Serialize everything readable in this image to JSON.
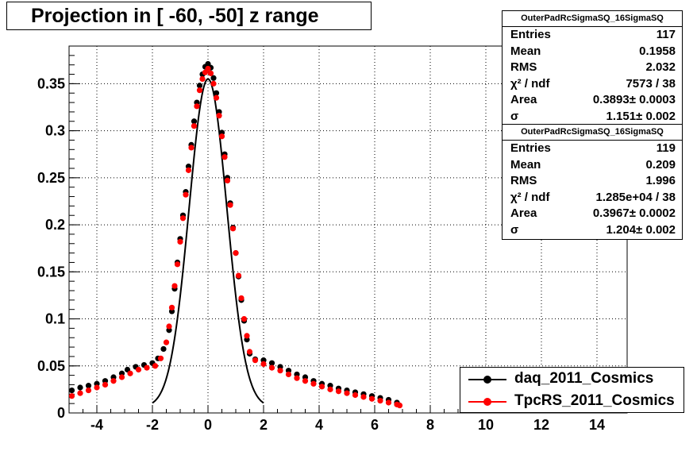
{
  "chart_data": {
    "type": "scatter",
    "title": "Projection in [ -60, -50] z range",
    "xlim": [
      -5,
      17
    ],
    "ylim": [
      0,
      0.39
    ],
    "x_ticks": [
      "-4",
      "-2",
      "0",
      "2",
      "4",
      "6",
      "8",
      "10",
      "12",
      "14"
    ],
    "y_ticks": [
      "0",
      "0.05",
      "0.1",
      "0.15",
      "0.2",
      "0.25",
      "0.3",
      "0.35"
    ],
    "grid": true,
    "legend_position": "bottom-right",
    "series": [
      {
        "name": "daq_2011_Cosmics",
        "color": "#000000",
        "points": [
          [
            -4.9,
            0.024
          ],
          [
            -4.6,
            0.027
          ],
          [
            -4.3,
            0.029
          ],
          [
            -4.0,
            0.031
          ],
          [
            -3.7,
            0.034
          ],
          [
            -3.4,
            0.038
          ],
          [
            -3.1,
            0.042
          ],
          [
            -2.9,
            0.046
          ],
          [
            -2.6,
            0.049
          ],
          [
            -2.3,
            0.051
          ],
          [
            -2.0,
            0.053
          ],
          [
            -1.8,
            0.058
          ],
          [
            -1.6,
            0.068
          ],
          [
            -1.4,
            0.088
          ],
          [
            -1.3,
            0.108
          ],
          [
            -1.2,
            0.132
          ],
          [
            -1.1,
            0.16
          ],
          [
            -1.0,
            0.185
          ],
          [
            -0.9,
            0.21
          ],
          [
            -0.8,
            0.235
          ],
          [
            -0.7,
            0.262
          ],
          [
            -0.6,
            0.285
          ],
          [
            -0.5,
            0.31
          ],
          [
            -0.4,
            0.33
          ],
          [
            -0.3,
            0.348
          ],
          [
            -0.2,
            0.36
          ],
          [
            -0.1,
            0.368
          ],
          [
            0.0,
            0.371
          ],
          [
            0.1,
            0.367
          ],
          [
            0.2,
            0.356
          ],
          [
            0.3,
            0.34
          ],
          [
            0.4,
            0.32
          ],
          [
            0.5,
            0.298
          ],
          [
            0.6,
            0.275
          ],
          [
            0.7,
            0.25
          ],
          [
            0.8,
            0.223
          ],
          [
            0.9,
            0.197
          ],
          [
            1.0,
            0.17
          ],
          [
            1.1,
            0.145
          ],
          [
            1.2,
            0.12
          ],
          [
            1.3,
            0.098
          ],
          [
            1.4,
            0.078
          ],
          [
            1.5,
            0.063
          ],
          [
            1.7,
            0.057
          ],
          [
            2.0,
            0.056
          ],
          [
            2.3,
            0.053
          ],
          [
            2.6,
            0.049
          ],
          [
            2.9,
            0.045
          ],
          [
            3.2,
            0.041
          ],
          [
            3.5,
            0.038
          ],
          [
            3.8,
            0.034
          ],
          [
            4.1,
            0.031
          ],
          [
            4.4,
            0.029
          ],
          [
            4.7,
            0.026
          ],
          [
            5.0,
            0.024
          ],
          [
            5.3,
            0.022
          ],
          [
            5.6,
            0.02
          ],
          [
            5.9,
            0.018
          ],
          [
            6.2,
            0.016
          ],
          [
            6.5,
            0.014
          ],
          [
            6.8,
            0.011
          ]
        ]
      },
      {
        "name": "TpcRS_2011_Cosmics",
        "color": "#ff0000",
        "points": [
          [
            -4.9,
            0.018
          ],
          [
            -4.6,
            0.021
          ],
          [
            -4.3,
            0.024
          ],
          [
            -4.0,
            0.027
          ],
          [
            -3.7,
            0.03
          ],
          [
            -3.4,
            0.034
          ],
          [
            -3.1,
            0.038
          ],
          [
            -2.8,
            0.042
          ],
          [
            -2.5,
            0.046
          ],
          [
            -2.2,
            0.048
          ],
          [
            -1.9,
            0.05
          ],
          [
            -1.7,
            0.058
          ],
          [
            -1.5,
            0.075
          ],
          [
            -1.4,
            0.092
          ],
          [
            -1.3,
            0.112
          ],
          [
            -1.2,
            0.135
          ],
          [
            -1.1,
            0.158
          ],
          [
            -1.0,
            0.182
          ],
          [
            -0.9,
            0.207
          ],
          [
            -0.8,
            0.232
          ],
          [
            -0.7,
            0.258
          ],
          [
            -0.6,
            0.282
          ],
          [
            -0.5,
            0.305
          ],
          [
            -0.4,
            0.326
          ],
          [
            -0.3,
            0.343
          ],
          [
            -0.2,
            0.355
          ],
          [
            -0.1,
            0.362
          ],
          [
            0.0,
            0.366
          ],
          [
            0.1,
            0.361
          ],
          [
            0.2,
            0.35
          ],
          [
            0.3,
            0.335
          ],
          [
            0.4,
            0.316
          ],
          [
            0.5,
            0.294
          ],
          [
            0.6,
            0.272
          ],
          [
            0.7,
            0.247
          ],
          [
            0.8,
            0.221
          ],
          [
            0.9,
            0.196
          ],
          [
            1.0,
            0.17
          ],
          [
            1.1,
            0.146
          ],
          [
            1.2,
            0.122
          ],
          [
            1.3,
            0.1
          ],
          [
            1.4,
            0.082
          ],
          [
            1.5,
            0.065
          ],
          [
            1.7,
            0.056
          ],
          [
            2.0,
            0.052
          ],
          [
            2.3,
            0.048
          ],
          [
            2.6,
            0.045
          ],
          [
            2.9,
            0.041
          ],
          [
            3.2,
            0.037
          ],
          [
            3.5,
            0.034
          ],
          [
            3.8,
            0.031
          ],
          [
            4.1,
            0.028
          ],
          [
            4.4,
            0.025
          ],
          [
            4.7,
            0.023
          ],
          [
            5.0,
            0.021
          ],
          [
            5.3,
            0.019
          ],
          [
            5.6,
            0.017
          ],
          [
            5.9,
            0.015
          ],
          [
            6.2,
            0.013
          ],
          [
            6.5,
            0.011
          ],
          [
            6.8,
            0.009
          ],
          [
            6.9,
            0.008
          ]
        ]
      }
    ],
    "fit_curve": {
      "color": "#000000",
      "x_range": [
        -2.0,
        2.0
      ],
      "peak": 0.355,
      "sigma": 0.68,
      "base": 0.006
    }
  },
  "stats": [
    {
      "header": "OuterPadRcSigmaSQ_16SigmaSQ",
      "rows": [
        {
          "k": "Entries",
          "v": "117"
        },
        {
          "k": "Mean",
          "v": "0.1958"
        },
        {
          "k": "RMS",
          "v": "2.032"
        },
        {
          "k": "χ² / ndf",
          "v": "7573 / 38"
        },
        {
          "k": "Area",
          "v": "0.3893± 0.0003"
        },
        {
          "k": "σ",
          "v": "1.151± 0.002"
        }
      ]
    },
    {
      "header": "OuterPadRcSigmaSQ_16SigmaSQ",
      "rows": [
        {
          "k": "Entries",
          "v": "119"
        },
        {
          "k": "Mean",
          "v": "0.209"
        },
        {
          "k": "RMS",
          "v": "1.996"
        },
        {
          "k": "χ² / ndf",
          "v": "1.285e+04 / 38"
        },
        {
          "k": "Area",
          "v": "0.3967± 0.0002"
        },
        {
          "k": "σ",
          "v": "1.204± 0.002"
        }
      ]
    }
  ],
  "legend": [
    {
      "label": "daq_2011_Cosmics",
      "color": "#000000"
    },
    {
      "label": "TpcRS_2011_Cosmics",
      "color": "#ff0000"
    }
  ]
}
